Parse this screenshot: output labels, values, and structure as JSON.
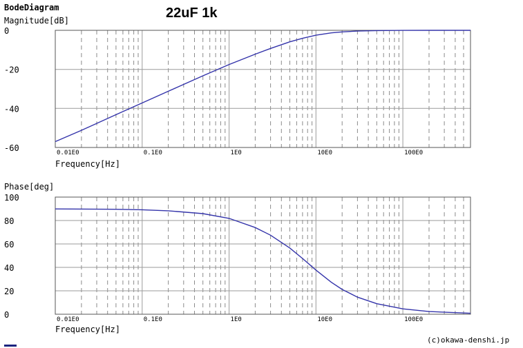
{
  "app_title": "BodeDiagram",
  "chart_title": "22uF 1k",
  "credit": "(c)okawa-denshi.jp",
  "colors": {
    "curve": "#3333aa",
    "grid_major": "#9a9a9a",
    "grid_minor": "#8a8a8a",
    "frame": "#555555"
  },
  "chart_data": [
    {
      "type": "line",
      "name": "magnitude",
      "ylabel": "Magnitude[dB]",
      "xlabel": "Frequency[Hz]",
      "xscale": "log",
      "xlim": [
        0.01,
        600
      ],
      "ylim": [
        -60,
        0
      ],
      "xticks": [
        0.01,
        0.1,
        1,
        10,
        100
      ],
      "xtick_labels": [
        "0.01E0",
        "0.1E0",
        "1E0",
        "10E0",
        "100E0"
      ],
      "yticks": [
        0,
        -20,
        -40,
        -60
      ],
      "ytick_labels": [
        "0",
        "-20",
        "-40",
        "-60"
      ],
      "grid": true,
      "series": [
        {
          "x": [
            0.01,
            0.02,
            0.05,
            0.1,
            0.2,
            0.5,
            1,
            2,
            3,
            5,
            7,
            10,
            15,
            20,
            30,
            50,
            100,
            200,
            600
          ],
          "y": [
            -57.0,
            -51.2,
            -43.2,
            -37.2,
            -31.2,
            -23.3,
            -17.5,
            -12.2,
            -9.3,
            -5.9,
            -4.1,
            -2.5,
            -1.3,
            -0.8,
            -0.4,
            -0.14,
            -0.04,
            -0.01,
            0
          ]
        }
      ]
    },
    {
      "type": "line",
      "name": "phase",
      "ylabel": "Phase[deg]",
      "xlabel": "Frequency[Hz]",
      "xscale": "log",
      "xlim": [
        0.01,
        600
      ],
      "ylim": [
        0,
        100
      ],
      "xticks": [
        0.01,
        0.1,
        1,
        10,
        100
      ],
      "xtick_labels": [
        "0.01E0",
        "0.1E0",
        "1E0",
        "10E0",
        "100E0"
      ],
      "yticks": [
        100,
        80,
        60,
        40,
        20,
        0
      ],
      "ytick_labels": [
        "100",
        "80",
        "60",
        "40",
        "20",
        "0"
      ],
      "grid": true,
      "series": [
        {
          "x": [
            0.01,
            0.05,
            0.1,
            0.2,
            0.5,
            1,
            2,
            3,
            5,
            7,
            10,
            15,
            20,
            30,
            50,
            100,
            200,
            600
          ],
          "y": [
            89.9,
            89.6,
            89.2,
            88.3,
            85.9,
            81.8,
            74.0,
            67.5,
            56.5,
            47.6,
            37.7,
            27.3,
            21.2,
            14.6,
            9.0,
            4.6,
            2.3,
            0.8
          ]
        }
      ]
    }
  ]
}
